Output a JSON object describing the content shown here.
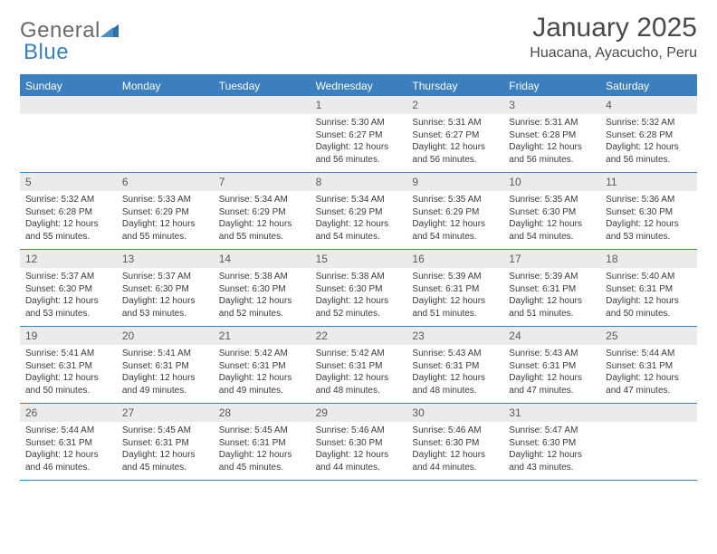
{
  "brand": {
    "text1": "General",
    "text2": "Blue"
  },
  "title": "January 2025",
  "location": "Huacana, Ayacucho, Peru",
  "colors": {
    "accent": "#3b7fbf",
    "headerText": "#ffffff",
    "daynumBg": "#ebebeb",
    "bodyText": "#3a3a3a",
    "titleText": "#4a4a4a",
    "logoGray": "#6a6a6a"
  },
  "weekdays": [
    "Sunday",
    "Monday",
    "Tuesday",
    "Wednesday",
    "Thursday",
    "Friday",
    "Saturday"
  ],
  "startWeekday": 3,
  "daysInMonth": 31,
  "days": {
    "1": {
      "sunrise": "5:30 AM",
      "sunset": "6:27 PM",
      "daylight": "12 hours and 56 minutes."
    },
    "2": {
      "sunrise": "5:31 AM",
      "sunset": "6:27 PM",
      "daylight": "12 hours and 56 minutes."
    },
    "3": {
      "sunrise": "5:31 AM",
      "sunset": "6:28 PM",
      "daylight": "12 hours and 56 minutes."
    },
    "4": {
      "sunrise": "5:32 AM",
      "sunset": "6:28 PM",
      "daylight": "12 hours and 56 minutes."
    },
    "5": {
      "sunrise": "5:32 AM",
      "sunset": "6:28 PM",
      "daylight": "12 hours and 55 minutes."
    },
    "6": {
      "sunrise": "5:33 AM",
      "sunset": "6:29 PM",
      "daylight": "12 hours and 55 minutes."
    },
    "7": {
      "sunrise": "5:34 AM",
      "sunset": "6:29 PM",
      "daylight": "12 hours and 55 minutes."
    },
    "8": {
      "sunrise": "5:34 AM",
      "sunset": "6:29 PM",
      "daylight": "12 hours and 54 minutes."
    },
    "9": {
      "sunrise": "5:35 AM",
      "sunset": "6:29 PM",
      "daylight": "12 hours and 54 minutes."
    },
    "10": {
      "sunrise": "5:35 AM",
      "sunset": "6:30 PM",
      "daylight": "12 hours and 54 minutes."
    },
    "11": {
      "sunrise": "5:36 AM",
      "sunset": "6:30 PM",
      "daylight": "12 hours and 53 minutes."
    },
    "12": {
      "sunrise": "5:37 AM",
      "sunset": "6:30 PM",
      "daylight": "12 hours and 53 minutes."
    },
    "13": {
      "sunrise": "5:37 AM",
      "sunset": "6:30 PM",
      "daylight": "12 hours and 53 minutes."
    },
    "14": {
      "sunrise": "5:38 AM",
      "sunset": "6:30 PM",
      "daylight": "12 hours and 52 minutes."
    },
    "15": {
      "sunrise": "5:38 AM",
      "sunset": "6:30 PM",
      "daylight": "12 hours and 52 minutes."
    },
    "16": {
      "sunrise": "5:39 AM",
      "sunset": "6:31 PM",
      "daylight": "12 hours and 51 minutes."
    },
    "17": {
      "sunrise": "5:39 AM",
      "sunset": "6:31 PM",
      "daylight": "12 hours and 51 minutes."
    },
    "18": {
      "sunrise": "5:40 AM",
      "sunset": "6:31 PM",
      "daylight": "12 hours and 50 minutes."
    },
    "19": {
      "sunrise": "5:41 AM",
      "sunset": "6:31 PM",
      "daylight": "12 hours and 50 minutes."
    },
    "20": {
      "sunrise": "5:41 AM",
      "sunset": "6:31 PM",
      "daylight": "12 hours and 49 minutes."
    },
    "21": {
      "sunrise": "5:42 AM",
      "sunset": "6:31 PM",
      "daylight": "12 hours and 49 minutes."
    },
    "22": {
      "sunrise": "5:42 AM",
      "sunset": "6:31 PM",
      "daylight": "12 hours and 48 minutes."
    },
    "23": {
      "sunrise": "5:43 AM",
      "sunset": "6:31 PM",
      "daylight": "12 hours and 48 minutes."
    },
    "24": {
      "sunrise": "5:43 AM",
      "sunset": "6:31 PM",
      "daylight": "12 hours and 47 minutes."
    },
    "25": {
      "sunrise": "5:44 AM",
      "sunset": "6:31 PM",
      "daylight": "12 hours and 47 minutes."
    },
    "26": {
      "sunrise": "5:44 AM",
      "sunset": "6:31 PM",
      "daylight": "12 hours and 46 minutes."
    },
    "27": {
      "sunrise": "5:45 AM",
      "sunset": "6:31 PM",
      "daylight": "12 hours and 45 minutes."
    },
    "28": {
      "sunrise": "5:45 AM",
      "sunset": "6:31 PM",
      "daylight": "12 hours and 45 minutes."
    },
    "29": {
      "sunrise": "5:46 AM",
      "sunset": "6:30 PM",
      "daylight": "12 hours and 44 minutes."
    },
    "30": {
      "sunrise": "5:46 AM",
      "sunset": "6:30 PM",
      "daylight": "12 hours and 44 minutes."
    },
    "31": {
      "sunrise": "5:47 AM",
      "sunset": "6:30 PM",
      "daylight": "12 hours and 43 minutes."
    }
  },
  "labels": {
    "sunrise": "Sunrise:",
    "sunset": "Sunset:",
    "daylight": "Daylight:"
  },
  "typography": {
    "title_fontsize": 30,
    "location_fontsize": 16,
    "weekday_fontsize": 12,
    "daynum_fontsize": 12,
    "body_fontsize": 10
  }
}
